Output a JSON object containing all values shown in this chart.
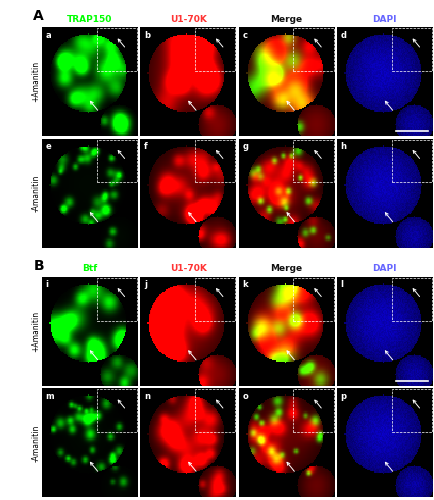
{
  "panel_A_label": "A",
  "panel_B_label": "B",
  "col_labels_A": [
    "TRAP150",
    "U1-70K",
    "Merge",
    "DAPI"
  ],
  "col_labels_B": [
    "Btf",
    "U1-70K",
    "Merge",
    "DAPI"
  ],
  "row_labels_A": [
    "+Amanitin",
    "-Amanitin"
  ],
  "row_labels_B": [
    "+Amanitin",
    "-Amanitin"
  ],
  "cell_labels_A": [
    [
      "a",
      "b",
      "c",
      "d"
    ],
    [
      "e",
      "f",
      "g",
      "h"
    ]
  ],
  "cell_labels_B": [
    [
      "i",
      "j",
      "k",
      "l"
    ],
    [
      "m",
      "n",
      "o",
      "p"
    ]
  ],
  "col_label_color_A": [
    "#00ff00",
    "#ff3333",
    "#ffffff",
    "#6666ff"
  ],
  "col_label_color_B": [
    "#00ff00",
    "#ff3333",
    "#ffffff",
    "#6666ff"
  ],
  "panel_label_fontsize": 10,
  "col_label_fontsize": 6.5,
  "row_label_fontsize": 5.5,
  "cell_label_fontsize": 6
}
